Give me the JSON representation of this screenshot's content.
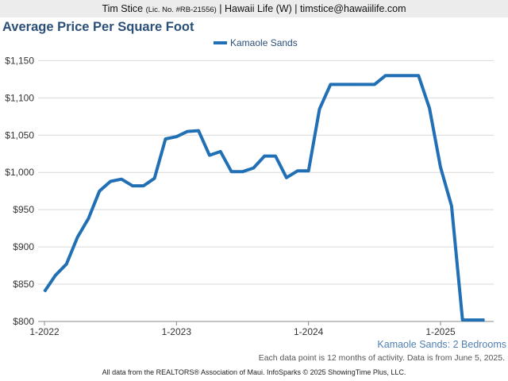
{
  "header": {
    "agent_name": "Tim Stice",
    "license": "(Lic. No. #RB-21556)",
    "rest": "| Hawaii Life (W) | timstice@hawaiilife.com"
  },
  "chart_data": {
    "type": "line",
    "title": "Average Price Per Square Foot",
    "subtitle": "Kamaole Sands: 2 Bedrooms",
    "note": "Each data point is 12 months of activity. Data is from June 5, 2025.",
    "footer": "All data from the REALTORS® Association of Maui. InfoSparks © 2025 ShowingTime Plus, LLC.",
    "xlabel": "",
    "ylabel": "",
    "ylim": [
      800,
      1160
    ],
    "y_ticks": [
      800,
      850,
      900,
      950,
      1000,
      1050,
      1100,
      1150
    ],
    "y_tick_labels": [
      "$800",
      "$850",
      "$900",
      "$950",
      "$1,000",
      "$1,050",
      "$1,100",
      "$1,150"
    ],
    "x_ticks": [
      "1-2022",
      "1-2023",
      "1-2024",
      "1-2025"
    ],
    "grid": true,
    "legend_position": "top-center",
    "color": "#2170b5",
    "series": [
      {
        "name": "Kamaole Sands",
        "x": [
          "2022-01",
          "2022-02",
          "2022-03",
          "2022-04",
          "2022-05",
          "2022-06",
          "2022-07",
          "2022-08",
          "2022-09",
          "2022-10",
          "2022-11",
          "2022-12",
          "2023-01",
          "2023-02",
          "2023-03",
          "2023-04",
          "2023-05",
          "2023-06",
          "2023-07",
          "2023-08",
          "2023-09",
          "2023-10",
          "2023-11",
          "2023-12",
          "2024-01",
          "2024-02",
          "2024-03",
          "2024-04",
          "2024-05",
          "2024-06",
          "2024-07",
          "2024-08",
          "2024-09",
          "2024-10",
          "2024-11",
          "2024-12",
          "2025-01",
          "2025-02",
          "2025-03",
          "2025-04",
          "2025-05"
        ],
        "values": [
          840,
          862,
          877,
          913,
          938,
          975,
          988,
          991,
          982,
          982,
          992,
          1045,
          1048,
          1055,
          1056,
          1023,
          1028,
          1001,
          1001,
          1006,
          1022,
          1022,
          993,
          1002,
          1002,
          1085,
          1118,
          1118,
          1118,
          1118,
          1118,
          1130,
          1130,
          1130,
          1130,
          1086,
          1007,
          955,
          802,
          802,
          802
        ]
      }
    ]
  }
}
